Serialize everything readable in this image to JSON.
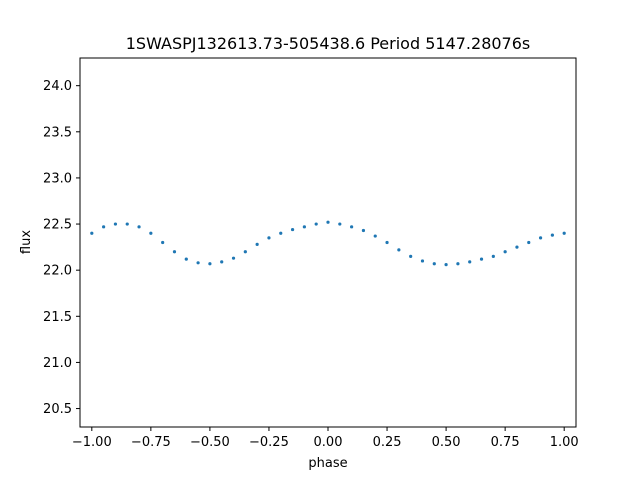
{
  "chart_data": {
    "type": "scatter",
    "title": "1SWASPJ132613.73-505438.6 Period 5147.28076s",
    "xlabel": "phase",
    "ylabel": "flux",
    "xlim": [
      -1.05,
      1.05
    ],
    "ylim": [
      20.3,
      24.3
    ],
    "x_ticks": [
      -1.0,
      -0.75,
      -0.5,
      -0.25,
      0.0,
      0.25,
      0.5,
      0.75,
      1.0
    ],
    "x_tick_labels": [
      "−1.00",
      "−0.75",
      "−0.50",
      "−0.25",
      "0.00",
      "0.25",
      "0.50",
      "0.75",
      "1.00"
    ],
    "y_ticks": [
      20.5,
      21.0,
      21.5,
      22.0,
      22.5,
      23.0,
      23.5,
      24.0
    ],
    "y_tick_labels": [
      "20.5",
      "21.0",
      "21.5",
      "22.0",
      "22.5",
      "23.0",
      "23.5",
      "24.0"
    ],
    "grid": false,
    "legend": "none",
    "marker_color": "#1f77b4",
    "series": [
      {
        "x": [
          -1.0,
          -0.95,
          -0.9,
          -0.85,
          -0.8,
          -0.75,
          -0.7,
          -0.65,
          -0.6,
          -0.55,
          -0.5,
          -0.45,
          -0.4,
          -0.35,
          -0.3,
          -0.25,
          -0.2,
          -0.15,
          -0.1,
          -0.05,
          0.0,
          0.05,
          0.1,
          0.15,
          0.2,
          0.25,
          0.3,
          0.35,
          0.4,
          0.45,
          0.5,
          0.55,
          0.6,
          0.65,
          0.7,
          0.75,
          0.8,
          0.85,
          0.9,
          0.95,
          1.0
        ],
        "y": [
          22.4,
          22.47,
          22.5,
          22.5,
          22.47,
          22.4,
          22.3,
          22.2,
          22.12,
          22.08,
          22.07,
          22.09,
          22.13,
          22.2,
          22.28,
          22.35,
          22.4,
          22.44,
          22.47,
          22.5,
          22.52,
          22.5,
          22.47,
          22.43,
          22.37,
          22.3,
          22.22,
          22.15,
          22.1,
          22.07,
          22.06,
          22.07,
          22.09,
          22.12,
          22.15,
          22.2,
          22.25,
          22.3,
          22.35,
          22.38,
          22.4
        ]
      }
    ]
  }
}
